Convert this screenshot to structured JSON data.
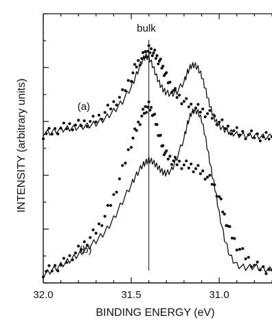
{
  "chart_data": {
    "type": "scatter",
    "title": "",
    "xlabel": "BINDING ENERGY (eV)",
    "ylabel": "INTENSITY (arbitrary units)",
    "x_reversed": true,
    "xlim": [
      32.0,
      30.7
    ],
    "ylim": [
      0,
      10
    ],
    "x_ticks": [
      32.0,
      31.5,
      31.0
    ],
    "x_tick_labels": [
      "32.0",
      "31.5",
      "31.0"
    ],
    "y_tick_labels_shown": false,
    "grid": false,
    "annotations": [
      {
        "text": "bulk",
        "x": 31.4
      },
      {
        "text": "(a)",
        "x": 31.77,
        "y": 6.85
      },
      {
        "text": "(b)",
        "x": 31.76,
        "y": 1.0
      }
    ],
    "reference_line": {
      "x": 31.4,
      "label": "bulk"
    },
    "series": [
      {
        "name": "",
        "curve": "a",
        "style": "dots",
        "color": "#111111",
        "x": [
          32.0,
          31.95,
          31.9,
          31.85,
          31.8,
          31.75,
          31.7,
          31.65,
          31.6,
          31.55,
          31.5,
          31.47,
          31.44,
          31.42,
          31.4,
          31.38,
          31.36,
          31.34,
          31.32,
          31.3,
          31.27,
          31.24,
          31.2,
          31.16,
          31.12,
          31.08,
          31.04,
          31.0,
          30.95,
          30.9,
          30.85,
          30.8,
          30.75,
          30.7
        ],
        "y": [
          5.85,
          5.95,
          6.1,
          6.2,
          6.25,
          6.35,
          6.45,
          6.75,
          7.1,
          7.5,
          8.2,
          8.7,
          8.95,
          9.15,
          9.3,
          9.25,
          9.05,
          8.85,
          8.55,
          8.2,
          7.75,
          7.45,
          7.2,
          7.0,
          6.9,
          6.75,
          6.6,
          6.35,
          6.1,
          5.95,
          5.85,
          5.8,
          5.75,
          5.75
        ]
      },
      {
        "name": "",
        "curve": "a",
        "style": "line",
        "color": "#111111",
        "x": [
          32.0,
          31.95,
          31.9,
          31.85,
          31.8,
          31.75,
          31.7,
          31.65,
          31.6,
          31.55,
          31.5,
          31.47,
          31.44,
          31.42,
          31.4,
          31.38,
          31.36,
          31.34,
          31.32,
          31.3,
          31.27,
          31.24,
          31.2,
          31.18,
          31.16,
          31.14,
          31.12,
          31.1,
          31.08,
          31.06,
          31.04,
          31.02,
          31.0,
          30.97,
          30.94,
          30.9,
          30.85,
          30.8,
          30.75,
          30.7
        ],
        "y": [
          5.9,
          5.95,
          6.05,
          6.1,
          6.15,
          6.2,
          6.3,
          6.5,
          6.8,
          7.2,
          7.8,
          8.3,
          8.85,
          9.05,
          9.0,
          8.7,
          8.3,
          7.95,
          7.7,
          7.55,
          7.5,
          7.6,
          8.0,
          8.4,
          8.65,
          8.7,
          8.55,
          8.25,
          7.75,
          7.2,
          6.75,
          6.4,
          6.2,
          6.05,
          5.95,
          5.85,
          5.8,
          5.8,
          5.75,
          5.75
        ]
      },
      {
        "name": "",
        "curve": "b",
        "style": "dots",
        "color": "#111111",
        "x": [
          32.0,
          31.95,
          31.9,
          31.85,
          31.8,
          31.75,
          31.7,
          31.65,
          31.6,
          31.55,
          31.5,
          31.47,
          31.44,
          31.42,
          31.4,
          31.38,
          31.36,
          31.34,
          31.32,
          31.3,
          31.27,
          31.24,
          31.2,
          31.16,
          31.12,
          31.08,
          31.04,
          31.0,
          30.97,
          30.94,
          30.9,
          30.85,
          30.8,
          30.75,
          30.7
        ],
        "y": [
          0.2,
          0.35,
          0.5,
          0.8,
          1.1,
          1.5,
          1.9,
          2.5,
          3.3,
          4.4,
          5.5,
          6.1,
          6.6,
          6.9,
          7.0,
          6.8,
          6.35,
          5.8,
          5.3,
          5.0,
          4.8,
          4.7,
          4.6,
          4.55,
          4.4,
          4.2,
          3.9,
          3.3,
          2.5,
          1.9,
          1.3,
          0.85,
          0.5,
          0.35,
          0.3
        ]
      },
      {
        "name": "",
        "curve": "b",
        "style": "line",
        "color": "#111111",
        "x": [
          32.0,
          31.95,
          31.9,
          31.85,
          31.8,
          31.75,
          31.7,
          31.65,
          31.6,
          31.55,
          31.5,
          31.47,
          31.44,
          31.42,
          31.4,
          31.38,
          31.36,
          31.34,
          31.32,
          31.3,
          31.27,
          31.24,
          31.2,
          31.18,
          31.16,
          31.14,
          31.12,
          31.1,
          31.08,
          31.06,
          31.04,
          31.02,
          31.0,
          30.97,
          30.94,
          30.9,
          30.85,
          30.8,
          30.75,
          30.7
        ],
        "y": [
          0.1,
          0.3,
          0.5,
          0.7,
          0.95,
          1.2,
          1.5,
          1.85,
          2.4,
          3.1,
          3.8,
          4.2,
          4.55,
          4.7,
          4.8,
          4.75,
          4.6,
          4.45,
          4.3,
          4.25,
          4.4,
          4.9,
          5.7,
          6.3,
          6.7,
          6.85,
          6.75,
          6.45,
          5.8,
          5.0,
          4.2,
          3.5,
          2.6,
          1.6,
          0.9,
          0.5,
          0.4,
          0.45,
          0.35,
          0.3
        ]
      }
    ]
  }
}
